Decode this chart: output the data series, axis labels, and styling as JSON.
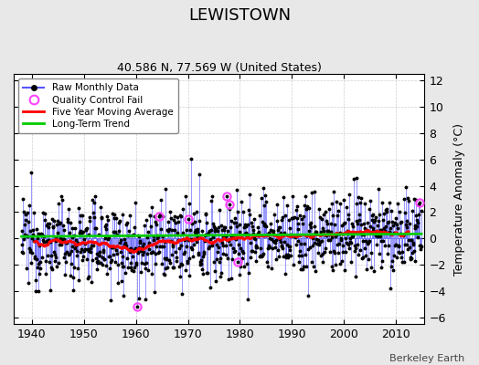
{
  "title": "LEWISTOWN",
  "subtitle": "40.586 N, 77.569 W (United States)",
  "ylabel": "Temperature Anomaly (°C)",
  "credit": "Berkeley Earth",
  "xlim": [
    1936.5,
    2015.5
  ],
  "ylim": [
    -6.5,
    12.5
  ],
  "yticks": [
    -6,
    -4,
    -2,
    0,
    2,
    4,
    6,
    8,
    10,
    12
  ],
  "xticks": [
    1940,
    1950,
    1960,
    1970,
    1980,
    1990,
    2000,
    2010
  ],
  "start_year": 1938,
  "end_year": 2014,
  "bg_color": "#e8e8e8",
  "plot_bg_color": "#ffffff",
  "raw_line_color": "#5555ff",
  "raw_dot_color": "#000000",
  "moving_avg_color": "#ff0000",
  "trend_color": "#00cc00",
  "qc_fail_color": "#ff44ff",
  "trend_value": 0.28,
  "seed": 12345
}
